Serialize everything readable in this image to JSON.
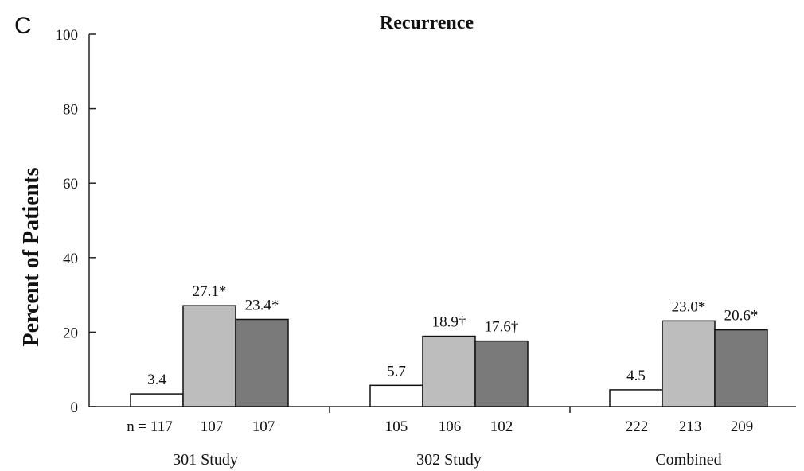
{
  "panel_letter": "C",
  "chart_data": {
    "type": "bar",
    "title": "Recurrence",
    "xlabel": "",
    "ylabel": "Percent of Patients",
    "ylim": [
      0,
      100
    ],
    "yticks": [
      0,
      20,
      40,
      60,
      80,
      100
    ],
    "grid": false,
    "legend": "none",
    "categories": [
      "301 Study",
      "302 Study",
      "Combined"
    ],
    "series": [
      {
        "color": "#ffffff",
        "values": [
          3.4,
          5.7,
          4.5
        ],
        "labels": [
          "3.4",
          "5.7",
          "4.5"
        ],
        "n": [
          "n = 117",
          "105",
          "222"
        ]
      },
      {
        "color": "#bdbdbd",
        "values": [
          27.1,
          18.9,
          23.0
        ],
        "labels": [
          "27.1*",
          "18.9†",
          "23.0*"
        ],
        "n": [
          "107",
          "106",
          "213"
        ]
      },
      {
        "color": "#7a7a7a",
        "values": [
          23.4,
          17.6,
          20.6
        ],
        "labels": [
          "23.4*",
          "17.6†",
          "20.6*"
        ],
        "n": [
          "107",
          "102",
          "209"
        ]
      }
    ]
  }
}
